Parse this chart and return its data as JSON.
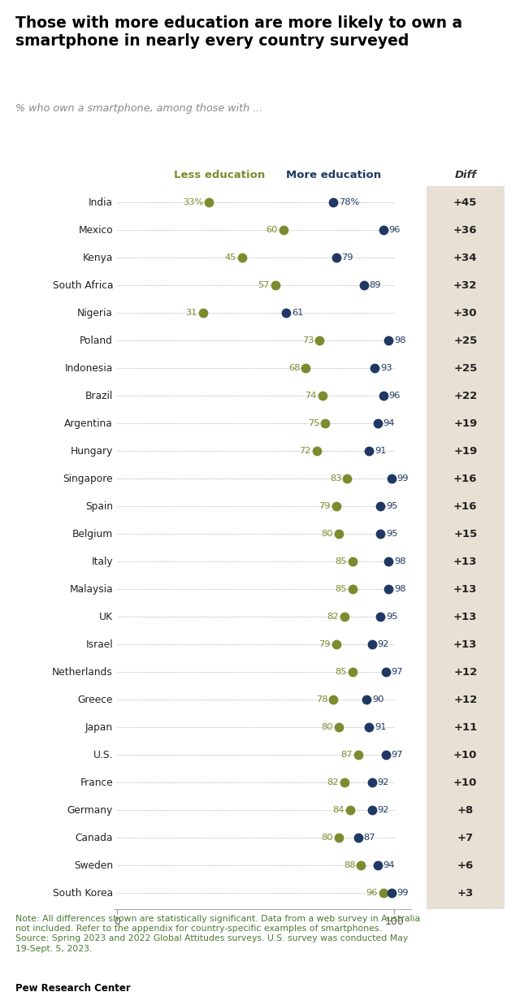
{
  "title": "Those with more education are more likely to own a\nsmartphone in nearly every country surveyed",
  "subtitle": "% who own a smartphone, among those with ...",
  "legend_less": "Less education",
  "legend_more": "More education",
  "legend_diff": "Diff",
  "countries": [
    "India",
    "Mexico",
    "Kenya",
    "South Africa",
    "Nigeria",
    "Poland",
    "Indonesia",
    "Brazil",
    "Argentina",
    "Hungary",
    "Singapore",
    "Spain",
    "Belgium",
    "Italy",
    "Malaysia",
    "UK",
    "Israel",
    "Netherlands",
    "Greece",
    "Japan",
    "U.S.",
    "France",
    "Germany",
    "Canada",
    "Sweden",
    "South Korea"
  ],
  "less_ed": [
    33,
    60,
    45,
    57,
    31,
    73,
    68,
    74,
    75,
    72,
    83,
    79,
    80,
    85,
    85,
    82,
    79,
    85,
    78,
    80,
    87,
    82,
    84,
    80,
    88,
    96
  ],
  "more_ed": [
    78,
    96,
    79,
    89,
    61,
    98,
    93,
    96,
    94,
    91,
    99,
    95,
    95,
    98,
    98,
    95,
    92,
    97,
    90,
    91,
    97,
    92,
    92,
    87,
    94,
    99
  ],
  "diff": [
    "+45",
    "+36",
    "+34",
    "+32",
    "+30",
    "+25",
    "+25",
    "+22",
    "+19",
    "+19",
    "+16",
    "+16",
    "+15",
    "+13",
    "+13",
    "+13",
    "+13",
    "+12",
    "+12",
    "+11",
    "+10",
    "+10",
    "+8",
    "+7",
    "+6",
    "+3"
  ],
  "color_less": "#7a8c2e",
  "color_more": "#1f3864",
  "color_diff_bg": "#e8e0d5",
  "color_note": "#4a7a32",
  "note_text": "Note: All differences shown are statistically significant. Data from a web survey in Australia\nnot included. Refer to the appendix for country-specific examples of smartphones.\nSource: Spring 2023 and 2022 Global Attitudes surveys. U.S. survey was conducted May\n19-Sept. 5, 2023.",
  "source_bold": "Pew Research Center",
  "dot_size": 72
}
